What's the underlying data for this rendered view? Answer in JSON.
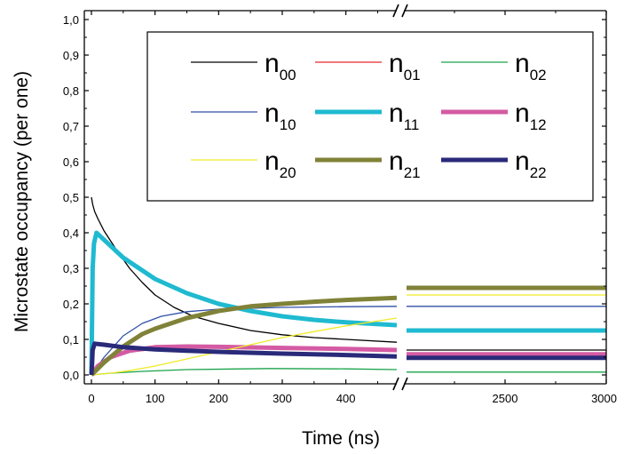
{
  "chart_data": {
    "type": "line",
    "xlabel": "Time (ns)",
    "ylabel": "Microstate occupancy (per one)",
    "ylim": [
      0,
      1.0
    ],
    "y_ticks": [
      "0,0",
      "0,1",
      "0,2",
      "0,3",
      "0,4",
      "0,5",
      "0,6",
      "0,7",
      "0,8",
      "0,9",
      "1,0"
    ],
    "x_segment1": {
      "range": [
        0,
        480
      ],
      "ticks": [
        "0",
        "100",
        "200",
        "300",
        "400"
      ]
    },
    "x_segment2": {
      "range": [
        2000,
        3000
      ],
      "ticks": [
        "2500",
        "3000"
      ]
    },
    "axis_break": true,
    "legend_position": "top-right",
    "series": [
      {
        "name": "n",
        "sub": "00",
        "color": "#000000",
        "width": 1.3,
        "points": [
          [
            0,
            0.5
          ],
          [
            2,
            0.48
          ],
          [
            5,
            0.46
          ],
          [
            10,
            0.44
          ],
          [
            20,
            0.405
          ],
          [
            40,
            0.35
          ],
          [
            60,
            0.3
          ],
          [
            80,
            0.26
          ],
          [
            100,
            0.225
          ],
          [
            130,
            0.19
          ],
          [
            160,
            0.165
          ],
          [
            200,
            0.145
          ],
          [
            250,
            0.125
          ],
          [
            300,
            0.113
          ],
          [
            350,
            0.105
          ],
          [
            400,
            0.1
          ],
          [
            480,
            0.092
          ]
        ],
        "tail": 0.07
      },
      {
        "name": "n",
        "sub": "01",
        "color": "#e8282b",
        "width": 1.3,
        "points": [
          [
            0,
            0
          ],
          [
            10,
            0.02
          ],
          [
            30,
            0.045
          ],
          [
            60,
            0.065
          ],
          [
            100,
            0.072
          ],
          [
            150,
            0.07
          ],
          [
            200,
            0.068
          ],
          [
            300,
            0.063
          ],
          [
            400,
            0.058
          ],
          [
            480,
            0.055
          ]
        ],
        "tail": 0.045
      },
      {
        "name": "n",
        "sub": "02",
        "color": "#1aa34a",
        "width": 1.3,
        "points": [
          [
            0,
            0
          ],
          [
            30,
            0.005
          ],
          [
            80,
            0.01
          ],
          [
            150,
            0.015
          ],
          [
            280,
            0.018
          ],
          [
            400,
            0.017
          ],
          [
            480,
            0.015
          ]
        ],
        "tail": 0.008
      },
      {
        "name": "n",
        "sub": "10",
        "color": "#3050a8",
        "width": 1.3,
        "points": [
          [
            0,
            0
          ],
          [
            20,
            0.05
          ],
          [
            50,
            0.11
          ],
          [
            80,
            0.145
          ],
          [
            110,
            0.165
          ],
          [
            150,
            0.178
          ],
          [
            200,
            0.185
          ],
          [
            300,
            0.19
          ],
          [
            400,
            0.192
          ],
          [
            480,
            0.193
          ]
        ],
        "tail": 0.193
      },
      {
        "name": "n",
        "sub": "11",
        "color": "#1fbad0",
        "width": 5,
        "points": [
          [
            0,
            0
          ],
          [
            1,
            0.15
          ],
          [
            2,
            0.3
          ],
          [
            4,
            0.37
          ],
          [
            8,
            0.4
          ],
          [
            20,
            0.38
          ],
          [
            50,
            0.33
          ],
          [
            100,
            0.27
          ],
          [
            150,
            0.23
          ],
          [
            200,
            0.2
          ],
          [
            250,
            0.18
          ],
          [
            300,
            0.165
          ],
          [
            350,
            0.155
          ],
          [
            400,
            0.148
          ],
          [
            480,
            0.14
          ]
        ],
        "tail": 0.125
      },
      {
        "name": "n",
        "sub": "12",
        "color": "#d45ba3",
        "width": 5,
        "points": [
          [
            0,
            0
          ],
          [
            10,
            0.025
          ],
          [
            30,
            0.05
          ],
          [
            60,
            0.068
          ],
          [
            100,
            0.078
          ],
          [
            150,
            0.08
          ],
          [
            200,
            0.079
          ],
          [
            300,
            0.076
          ],
          [
            400,
            0.073
          ],
          [
            480,
            0.07
          ]
        ],
        "tail": 0.058
      },
      {
        "name": "n",
        "sub": "20",
        "color": "#f0ea28",
        "width": 1.3,
        "points": [
          [
            0,
            0
          ],
          [
            30,
            0.005
          ],
          [
            60,
            0.012
          ],
          [
            100,
            0.025
          ],
          [
            150,
            0.045
          ],
          [
            200,
            0.065
          ],
          [
            250,
            0.085
          ],
          [
            300,
            0.105
          ],
          [
            350,
            0.122
          ],
          [
            400,
            0.138
          ],
          [
            480,
            0.16
          ]
        ],
        "tail": 0.225
      },
      {
        "name": "n",
        "sub": "21",
        "color": "#808238",
        "width": 5,
        "points": [
          [
            0,
            0
          ],
          [
            20,
            0.035
          ],
          [
            50,
            0.08
          ],
          [
            80,
            0.115
          ],
          [
            100,
            0.13
          ],
          [
            150,
            0.16
          ],
          [
            200,
            0.18
          ],
          [
            250,
            0.193
          ],
          [
            300,
            0.2
          ],
          [
            350,
            0.206
          ],
          [
            400,
            0.211
          ],
          [
            480,
            0.217
          ]
        ],
        "tail": 0.245
      },
      {
        "name": "n",
        "sub": "22",
        "color": "#2a2a7a",
        "width": 5,
        "points": [
          [
            0,
            0
          ],
          [
            1,
            0.03
          ],
          [
            2,
            0.07
          ],
          [
            5,
            0.088
          ],
          [
            20,
            0.085
          ],
          [
            50,
            0.078
          ],
          [
            100,
            0.072
          ],
          [
            150,
            0.068
          ],
          [
            200,
            0.065
          ],
          [
            300,
            0.06
          ],
          [
            400,
            0.056
          ],
          [
            480,
            0.052
          ]
        ],
        "tail": 0.048
      }
    ]
  }
}
